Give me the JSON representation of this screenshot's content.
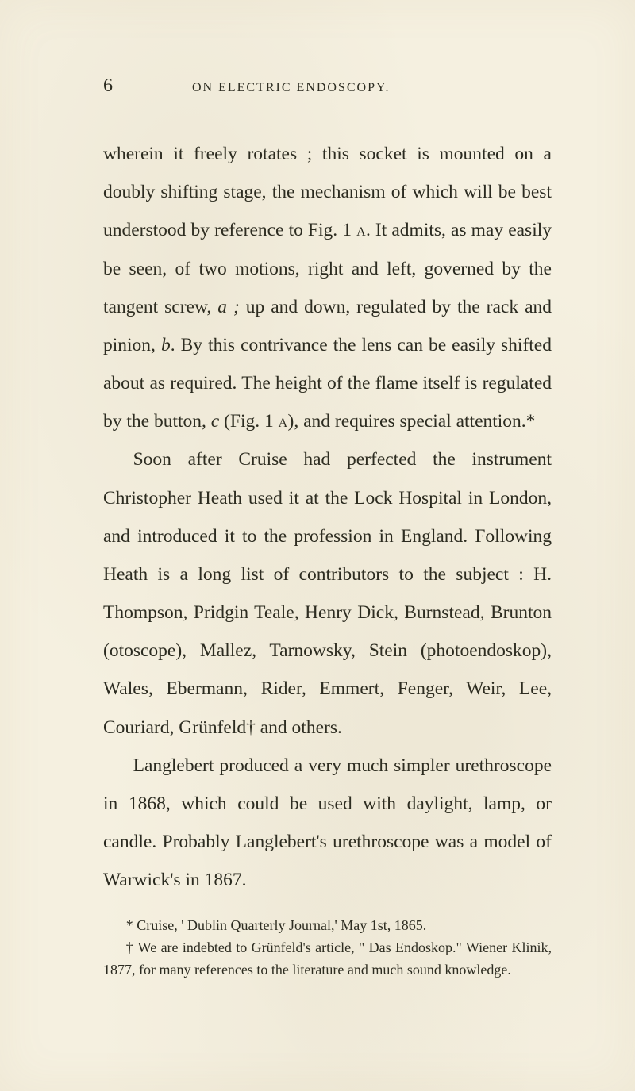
{
  "page": {
    "number": "6",
    "running_head": "ON ELECTRIC ENDOSCOPY.",
    "background_color": "#f5f0e0",
    "text_color": "#2a2a20",
    "body_fontsize": 23.5,
    "body_lineheight": 2.05,
    "header_fontsize": 16,
    "footnote_fontsize": 18
  },
  "paragraphs": {
    "p1_a": "wherein it freely rotates ; this socket is mounted on a doubly shifting stage, the mechanism of which will be best understood by reference to Fig. 1 ",
    "p1_sc1": "a",
    "p1_b": ". It admits, as may easily be seen, of two motions, right and left, governed by the tangent screw, ",
    "p1_it1": "a ;",
    "p1_c": " up and down, regulated by the rack and pinion, ",
    "p1_it2": "b",
    "p1_d": ". By this contrivance the lens can be easily shifted about as required. The height of the flame itself is regulated by the button, ",
    "p1_it3": "c",
    "p1_e": " (Fig. 1 ",
    "p1_sc2": "a",
    "p1_f": "), and requires special attention.*",
    "p2": "Soon after Cruise had perfected the instrument Christopher Heath used it at the Lock Hospital in London, and introduced it to the profession in England. Following Heath is a long list of con­tributors to the subject : H. Thompson, Pridgin Teale, Henry Dick, Burnstead, Brunton (otoscope), Mallez, Tarnowsky, Stein (photoendoskop), Wales, Ebermann, Rider, Emmert, Fenger, Weir, Lee, Couriard, Grünfeld† and others.",
    "p3": "Langlebert produced a very much simpler urethroscope in 1868, which could be used with daylight, lamp, or candle. Probably Langlebert's urethroscope was a model of Warwick's in 1867."
  },
  "footnotes": {
    "f1": "* Cruise, ' Dublin Quarterly Journal,' May 1st, 1865.",
    "f2": "† We are indebted to Grünfeld's article, \" Das Endoskop.\" Wiener Klinik, 1877, for many references to the literature and much sound knowledge."
  }
}
